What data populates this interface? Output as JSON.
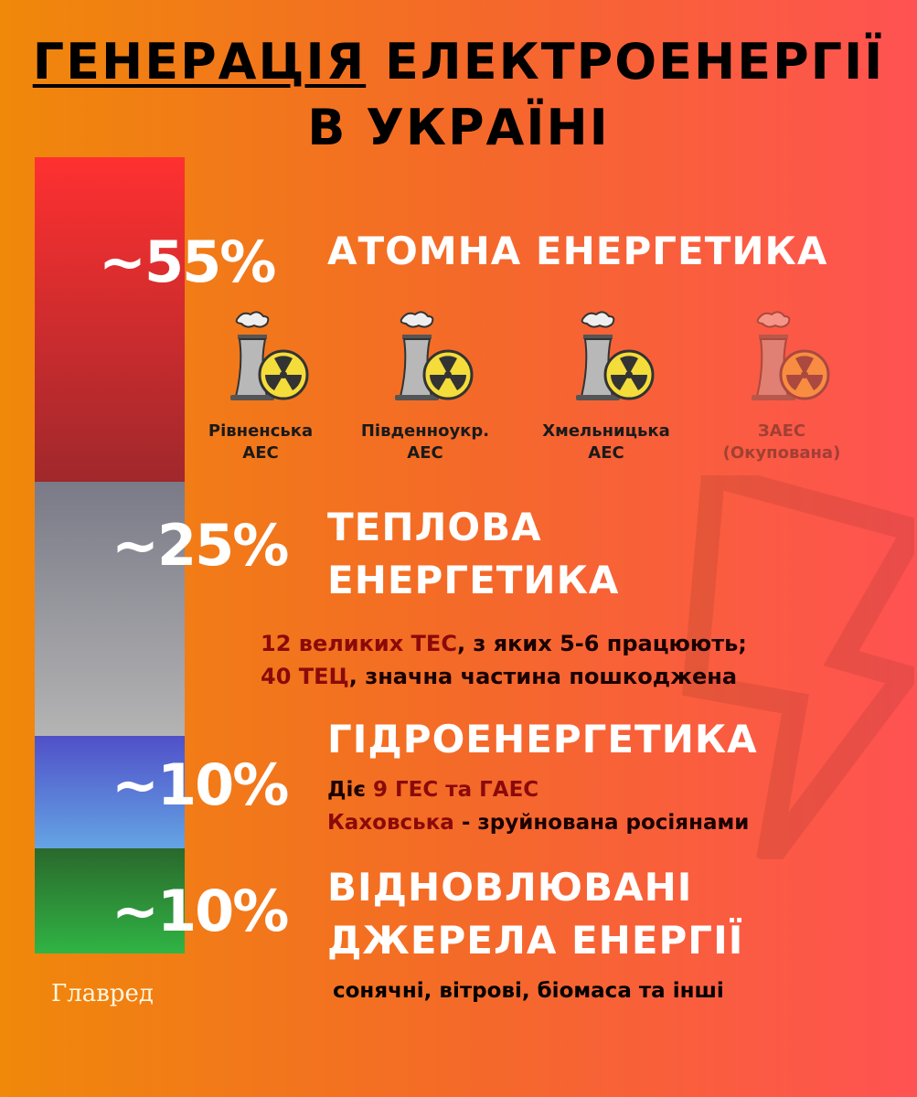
{
  "title": {
    "line1_underlined": "ГЕНЕРАЦІЯ",
    "line1_rest": "ЕЛЕКТРОЕНЕРГІЇ",
    "line2": "В УКРАЇНІ"
  },
  "chart_data": {
    "type": "bar",
    "stacked": true,
    "orientation": "vertical",
    "categories": [
      "Атомна енергетика",
      "Теплова енергетика",
      "Гідроенергетика",
      "Відновлювані джерела енергії"
    ],
    "values": [
      55,
      25,
      10,
      10
    ],
    "labels": [
      "~55%",
      "~25%",
      "~10%",
      "~10%"
    ],
    "colors": [
      "#e02e2e",
      "#9a9aa4",
      "#5a7ad4",
      "#2e8e38"
    ]
  },
  "sections": [
    {
      "heading": "АТОМНА ЕНЕРГЕТИКА"
    },
    {
      "heading_l1": "ТЕПЛОВА",
      "heading_l2": "ЕНЕРГЕТИКА",
      "line1_hl": "12 великих ТЕС",
      "line1_rest": ", з яких 5-6 працюють;",
      "line2_hl": "40 ТЕЦ",
      "line2_rest": ", значна частина пошкоджена"
    },
    {
      "heading": "ГІДРОЕНЕРГЕТИКА",
      "line1_a": "Діє ",
      "line1_hl": "9 ГЕС та ГАЕС",
      "line2_hl": "Каховська",
      "line2_rest": " - зруйнована росіянами"
    },
    {
      "heading_l1": "ВІДНОВЛЮВАНІ",
      "heading_l2": "ДЖЕРЕЛА ЕНЕРГІЇ",
      "note": "сонячні, вітрові, біомаса та інші"
    }
  ],
  "plants": [
    {
      "l1": "Рівненська",
      "l2": "АЕС",
      "icon": "nuclear-plant-icon"
    },
    {
      "l1": "Південноукр.",
      "l2": "АЕС",
      "icon": "nuclear-plant-icon"
    },
    {
      "l1": "Хмельницька",
      "l2": "АЕС",
      "icon": "nuclear-plant-icon"
    },
    {
      "l1": "ЗАЕС",
      "l2": "(Окупована)",
      "icon": "nuclear-plant-icon",
      "occupied": true
    }
  ],
  "logo": "Главред"
}
